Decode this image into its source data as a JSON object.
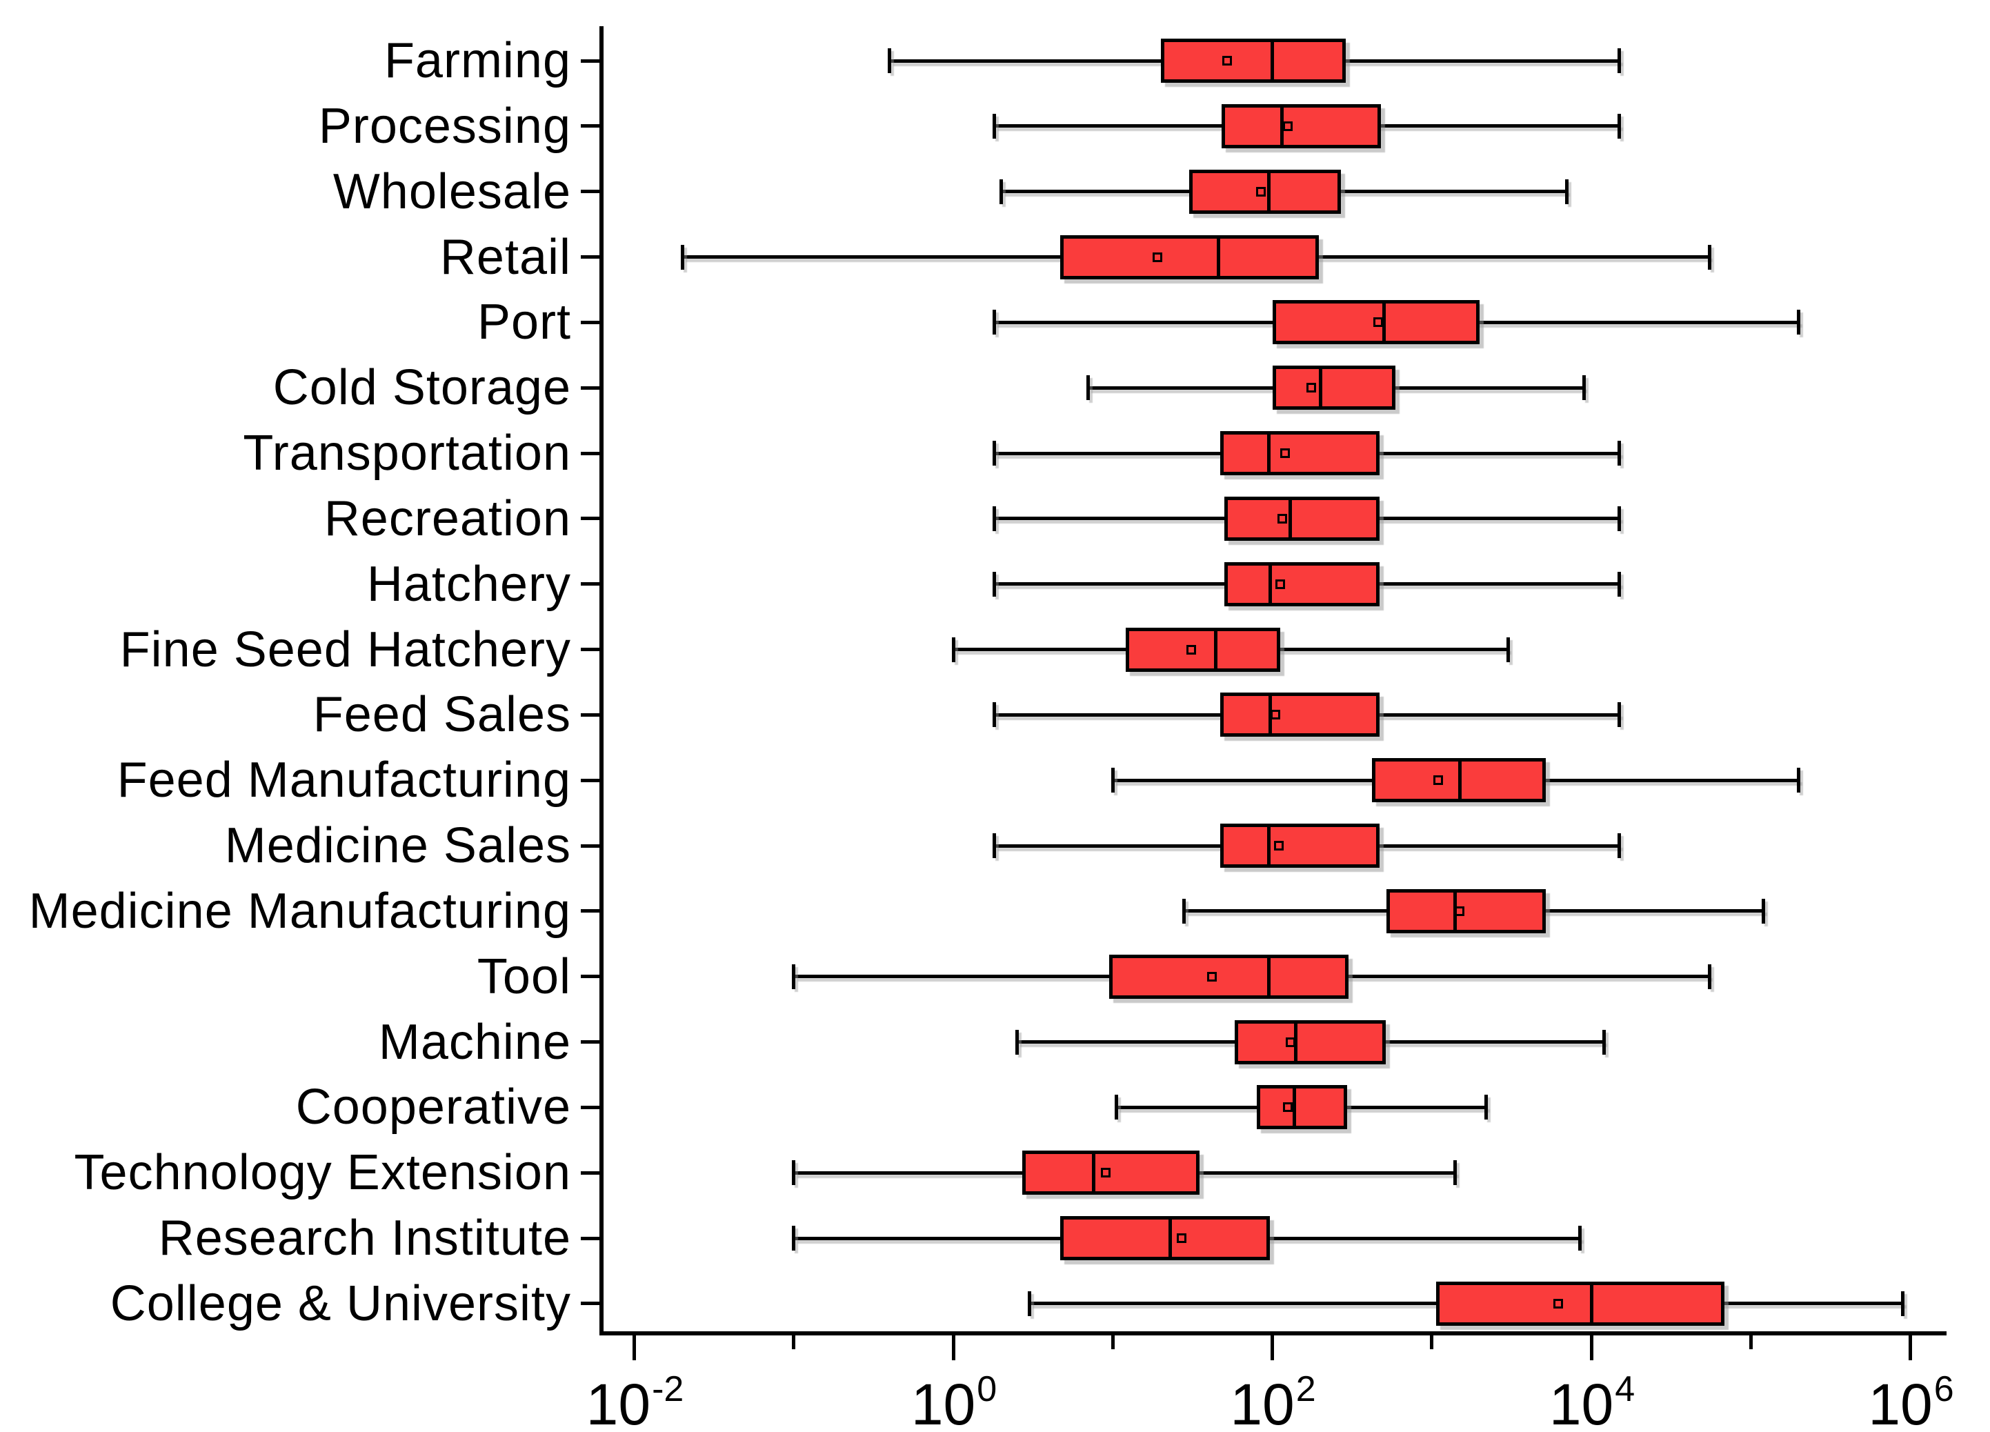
{
  "chart_data": {
    "type": "box",
    "orientation": "horizontal",
    "title": "",
    "xlabel": "",
    "ylabel": "",
    "legend": null,
    "grid": false,
    "x_axis": {
      "scale": "log10",
      "range_exponents": [
        -2.2,
        6.2
      ],
      "major_ticks": [
        {
          "base": "10",
          "exp": "-2",
          "value": 0.01
        },
        {
          "base": "10",
          "exp": "0",
          "value": 1
        },
        {
          "base": "10",
          "exp": "2",
          "value": 100
        },
        {
          "base": "10",
          "exp": "4",
          "value": 10000
        },
        {
          "base": "10",
          "exp": "6",
          "value": 1000000
        }
      ],
      "minor_tick_values": [
        0.1,
        10,
        1000,
        100000
      ]
    },
    "categories": [
      "Farming",
      "Processing",
      "Wholesale",
      "Retail",
      "Port",
      "Cold Storage",
      "Transportation",
      "Recreation",
      "Hatchery",
      "Fine Seed Hatchery",
      "Feed Sales",
      "Feed Manufacturing",
      "Medicine Sales",
      "Medicine Manufacturing",
      "Tool",
      "Machine",
      "Cooperative",
      "Technology Extension",
      "Research Institute",
      "College & University"
    ],
    "boxes": [
      {
        "category": "Farming",
        "whisker_low": 0.4,
        "q1": 20,
        "median": 100,
        "q3": 290,
        "whisker_high": 15000,
        "mean": 52
      },
      {
        "category": "Processing",
        "whisker_low": 1.8,
        "q1": 48,
        "median": 115,
        "q3": 480,
        "whisker_high": 15000,
        "mean": 125
      },
      {
        "category": "Wholesale",
        "whisker_low": 2.0,
        "q1": 30,
        "median": 95,
        "q3": 270,
        "whisker_high": 7000,
        "mean": 85
      },
      {
        "category": "Retail",
        "whisker_low": 0.02,
        "q1": 4.7,
        "median": 46,
        "q3": 195,
        "whisker_high": 55000,
        "mean": 19
      },
      {
        "category": "Port",
        "whisker_low": 1.8,
        "q1": 100,
        "median": 500,
        "q3": 2000,
        "whisker_high": 200000,
        "mean": 460
      },
      {
        "category": "Cold Storage",
        "whisker_low": 7,
        "q1": 100,
        "median": 200,
        "q3": 590,
        "whisker_high": 9000,
        "mean": 175
      },
      {
        "category": "Transportation",
        "whisker_low": 1.8,
        "q1": 47,
        "median": 95,
        "q3": 470,
        "whisker_high": 15000,
        "mean": 120
      },
      {
        "category": "Recreation",
        "whisker_low": 1.8,
        "q1": 50,
        "median": 130,
        "q3": 470,
        "whisker_high": 15000,
        "mean": 115
      },
      {
        "category": "Hatchery",
        "whisker_low": 1.8,
        "q1": 50,
        "median": 97,
        "q3": 470,
        "whisker_high": 15000,
        "mean": 112
      },
      {
        "category": "Fine Seed Hatchery",
        "whisker_low": 1.0,
        "q1": 12,
        "median": 44,
        "q3": 112,
        "whisker_high": 3000,
        "mean": 31
      },
      {
        "category": "Feed Sales",
        "whisker_low": 1.8,
        "q1": 47,
        "median": 97,
        "q3": 470,
        "whisker_high": 15000,
        "mean": 105
      },
      {
        "category": "Feed Manufacturing",
        "whisker_low": 10,
        "q1": 420,
        "median": 1500,
        "q3": 5200,
        "whisker_high": 200000,
        "mean": 1100
      },
      {
        "category": "Medicine Sales",
        "whisker_low": 1.8,
        "q1": 47,
        "median": 95,
        "q3": 470,
        "whisker_high": 15000,
        "mean": 110
      },
      {
        "category": "Medicine Manufacturing",
        "whisker_low": 28,
        "q1": 520,
        "median": 1400,
        "q3": 5200,
        "whisker_high": 120000,
        "mean": 1500
      },
      {
        "category": "Tool",
        "whisker_low": 0.1,
        "q1": 9.5,
        "median": 95,
        "q3": 300,
        "whisker_high": 55000,
        "mean": 42
      },
      {
        "category": "Machine",
        "whisker_low": 2.5,
        "q1": 58,
        "median": 140,
        "q3": 515,
        "whisker_high": 12000,
        "mean": 130
      },
      {
        "category": "Cooperative",
        "whisker_low": 10.5,
        "q1": 80,
        "median": 138,
        "q3": 295,
        "whisker_high": 2200,
        "mean": 125
      },
      {
        "category": "Technology Extension",
        "whisker_low": 0.1,
        "q1": 2.7,
        "median": 7.6,
        "q3": 35,
        "whisker_high": 1400,
        "mean": 9
      },
      {
        "category": "Research Institute",
        "whisker_low": 0.1,
        "q1": 4.7,
        "median": 23,
        "q3": 97,
        "whisker_high": 8500,
        "mean": 27
      },
      {
        "category": "College & University",
        "whisker_low": 3,
        "q1": 1060,
        "median": 10000,
        "q3": 68000,
        "whisker_high": 900000,
        "mean": 6200
      }
    ],
    "style": {
      "box_fill": "#fa3c3c",
      "stroke": "#000000",
      "background": "#ffffff"
    }
  }
}
